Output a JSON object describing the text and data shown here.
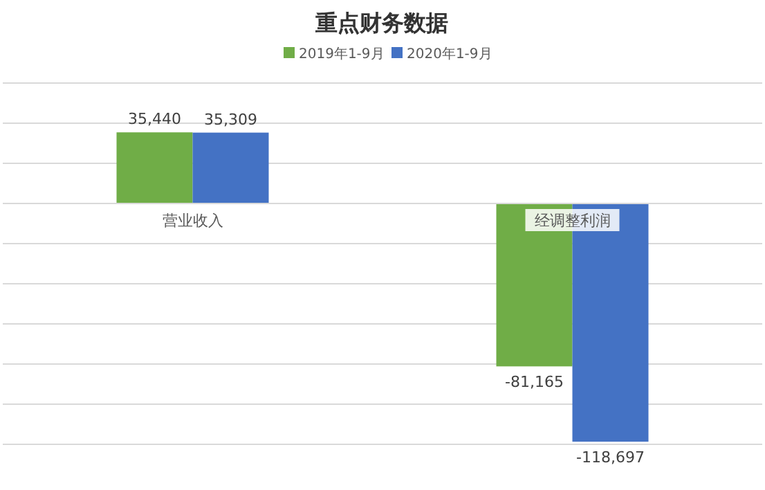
{
  "chart_data": {
    "type": "bar",
    "title": "重点财务数据",
    "categories": [
      "营业收入",
      "经调整利润"
    ],
    "series": [
      {
        "name": "2019年1-9月",
        "color": "#70ad47",
        "values": [
          35440,
          -81165
        ],
        "value_labels": [
          "35,440",
          "-81,165"
        ]
      },
      {
        "name": "2020年1-9月",
        "color": "#4472c4",
        "values": [
          35309,
          -118697
        ],
        "value_labels": [
          "35,309",
          "-118,697"
        ]
      }
    ],
    "ylim": [
      -120000,
      60000
    ],
    "yticks": [
      {
        "value": -120000,
        "label": null
      },
      {
        "value": -100000,
        "label": null
      },
      {
        "value": -80000,
        "label": null
      },
      {
        "value": -60000,
        "label": null
      },
      {
        "value": -40000,
        "label": null
      },
      {
        "value": -20000,
        "label": null
      },
      {
        "value": 0,
        "label": null
      },
      {
        "value": 20000,
        "label": null
      },
      {
        "value": 40000,
        "label": null
      },
      {
        "value": 60000,
        "label": null
      }
    ],
    "grid": "y",
    "legend": "top",
    "tick_labels": "x"
  }
}
